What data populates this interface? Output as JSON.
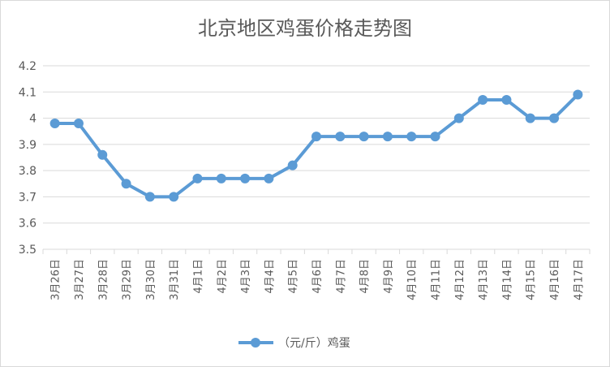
{
  "chart_data": {
    "type": "line",
    "title": "北京地区鸡蛋价格走势图",
    "categories": [
      "3月26日",
      "3月27日",
      "3月28日",
      "3月29日",
      "3月30日",
      "3月31日",
      "4月1日",
      "4月2日",
      "4月3日",
      "4月4日",
      "4月5日",
      "4月6日",
      "4月7日",
      "4月8日",
      "4月9日",
      "4月10日",
      "4月11日",
      "4月12日",
      "4月13日",
      "4月14日",
      "4月15日",
      "4月16日",
      "4月17日"
    ],
    "series": [
      {
        "name": "（元/斤）鸡蛋",
        "values": [
          3.98,
          3.98,
          3.86,
          3.75,
          3.7,
          3.7,
          3.77,
          3.77,
          3.77,
          3.77,
          3.82,
          3.93,
          3.93,
          3.93,
          3.93,
          3.93,
          3.93,
          4.0,
          4.07,
          4.07,
          4.0,
          4.0,
          4.09
        ],
        "color": "#5b9bd5"
      }
    ],
    "ylim": [
      3.5,
      4.2
    ],
    "yticks": [
      "3.5",
      "3.6",
      "3.7",
      "3.8",
      "3.9",
      "4",
      "4.1",
      "4.2"
    ],
    "grid": true,
    "legend": "bottom",
    "colors": {
      "gridline": "#d9d9d9",
      "text": "#595959"
    }
  }
}
